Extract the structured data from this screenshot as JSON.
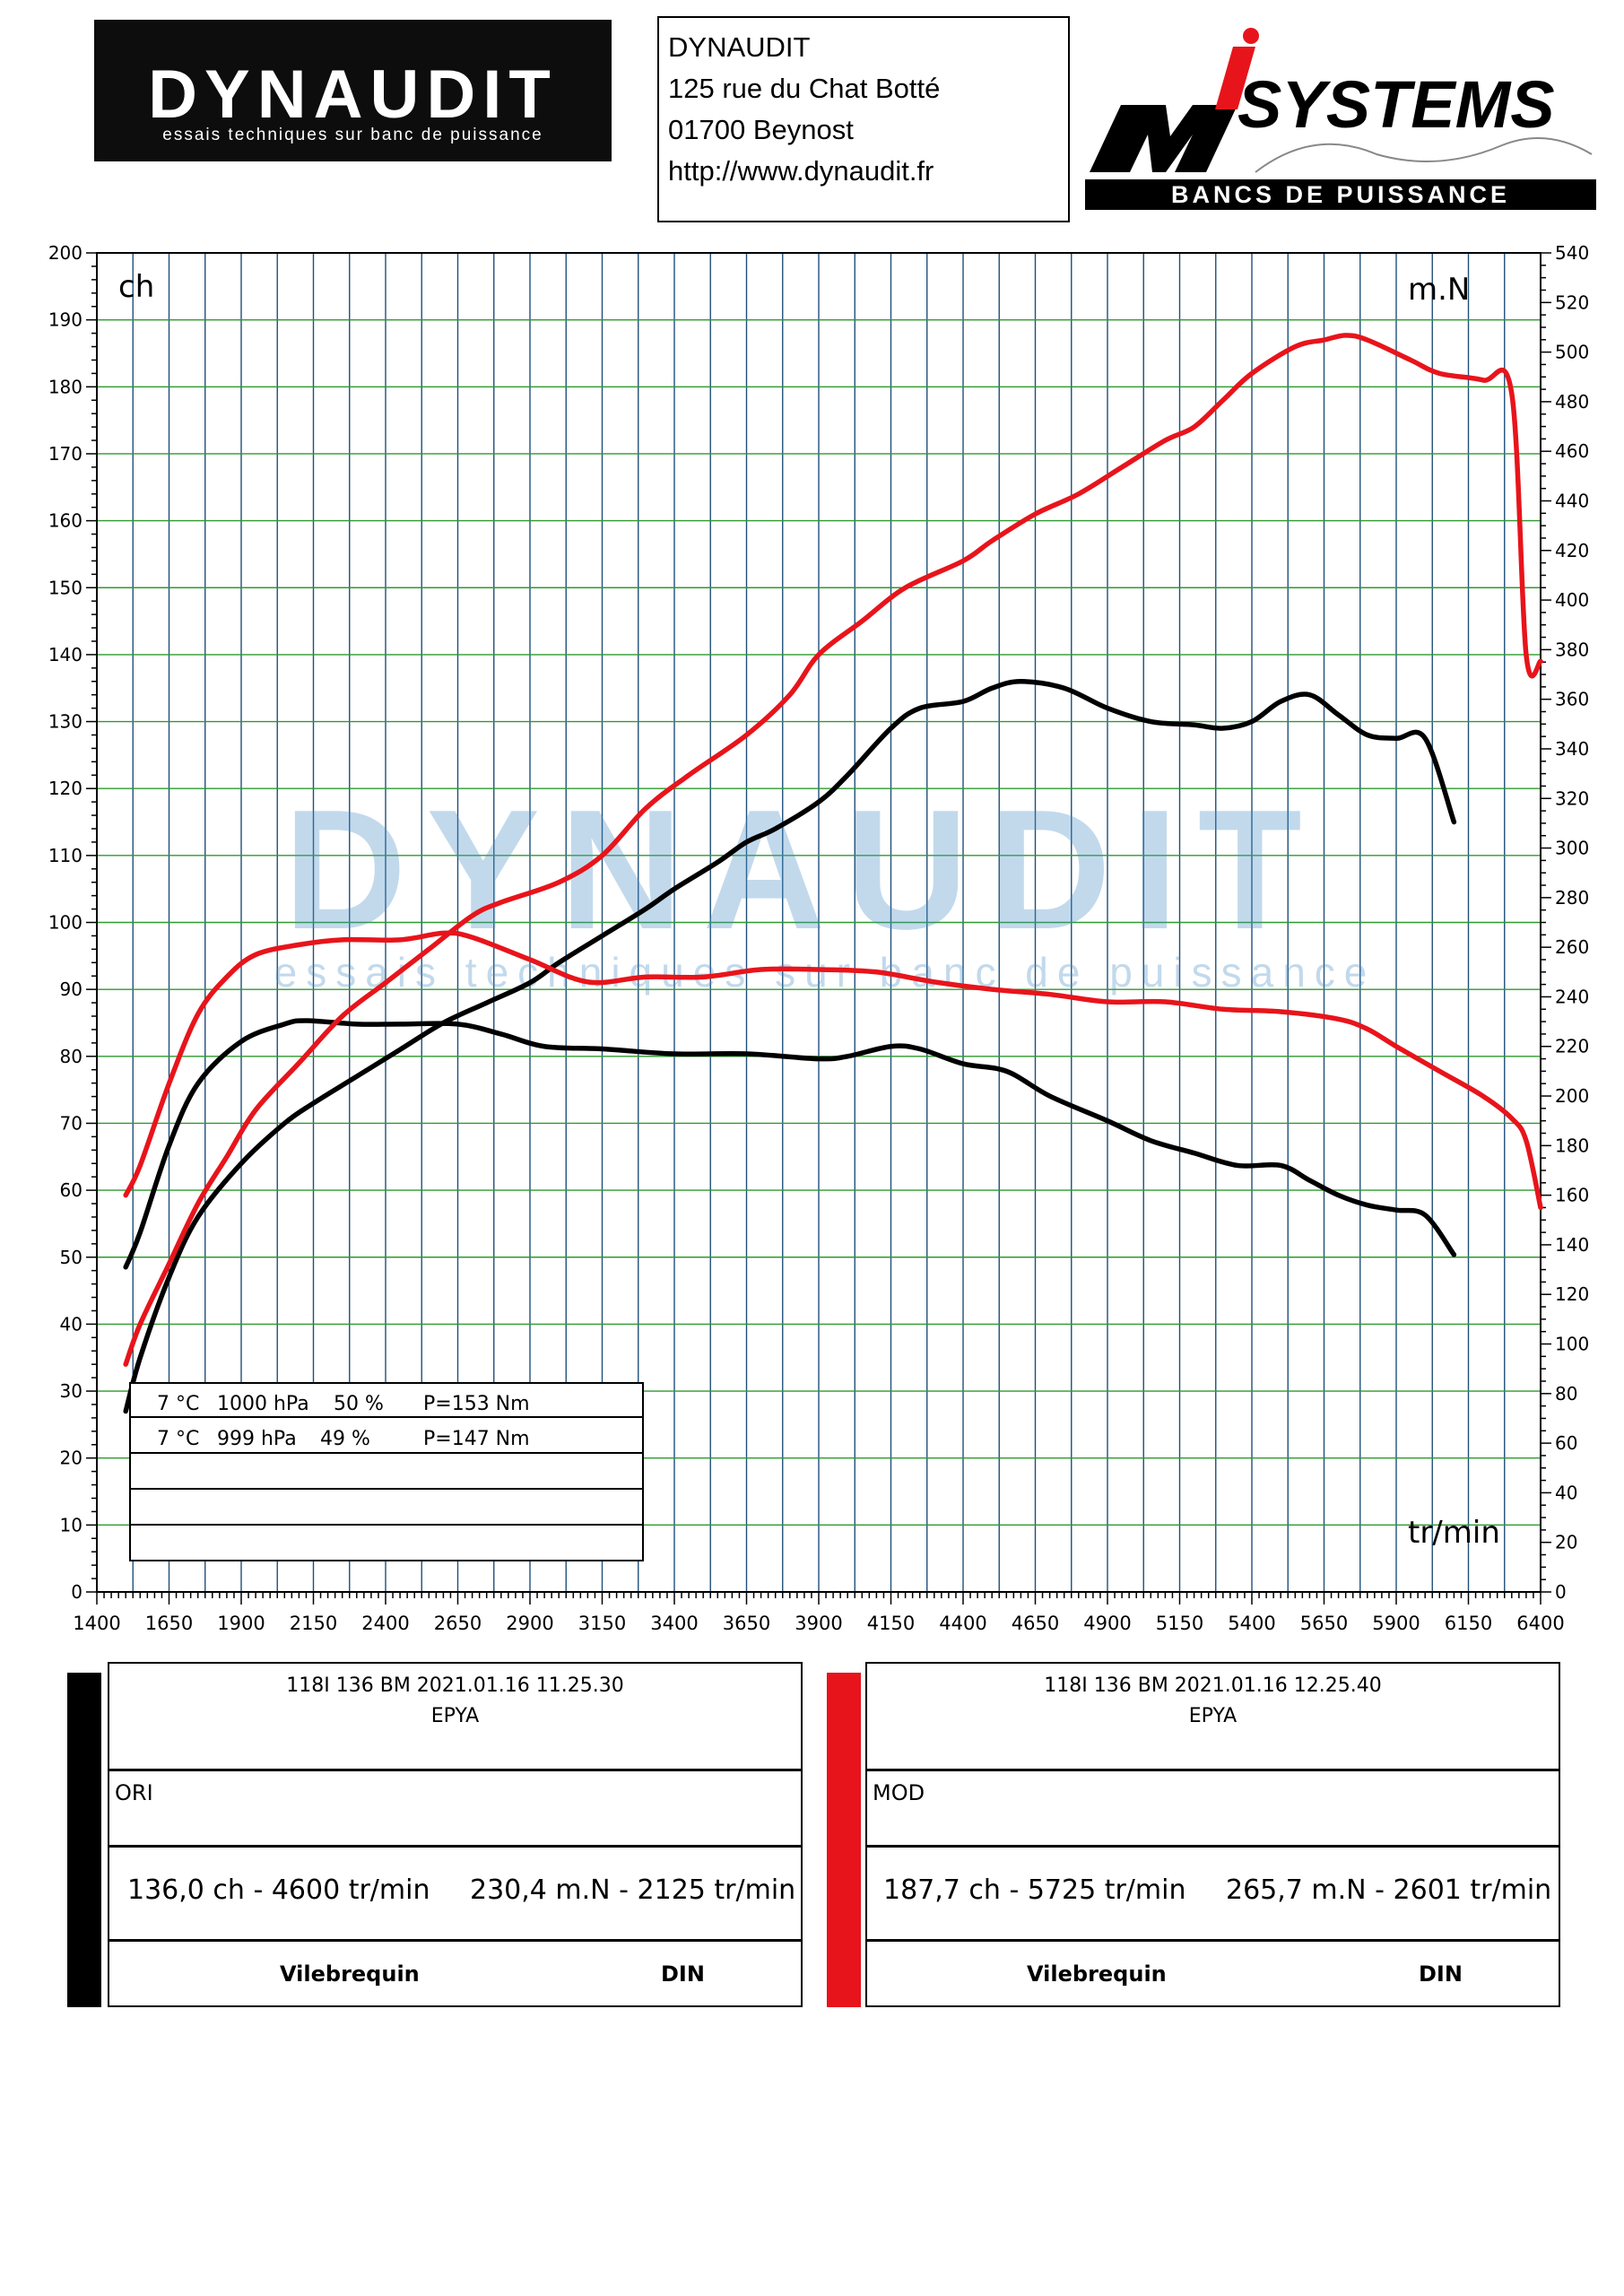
{
  "header": {
    "logo_text": "DYNAUDIT",
    "logo_tagline": "essais techniques sur banc de puissance",
    "address_lines": [
      "DYNAUDIT",
      "125 rue du Chat Botté",
      "01700 Beynost",
      "http://www.dynaudit.fr"
    ],
    "right_logo_text": "SYSTEMS",
    "right_logo_letters": "Mi",
    "right_logo_tagline": "BANCS DE PUISSANCE"
  },
  "watermark": {
    "text": "DYNAUDIT",
    "tagline": "essais techniques sur banc de puissance"
  },
  "conditions": [
    {
      "temp": "7 °C",
      "pressure": "1000 hPa",
      "humidity": "50 %",
      "loss": "P=153 Nm"
    },
    {
      "temp": "7 °C",
      "pressure": "999 hPa",
      "humidity": "49 %",
      "loss": "P=147 Nm"
    }
  ],
  "colors": {
    "ori": "#000000",
    "mod": "#e8141b",
    "grid_vertical": "#1f4f7a",
    "grid_horizontal": "#2e9a2e"
  },
  "chart_data": {
    "type": "line",
    "xlabel": "tr/min",
    "ylabel_left": "ch",
    "ylabel_right": "m.N",
    "xlim": [
      1400,
      6400
    ],
    "ylim_left": [
      0,
      200
    ],
    "ylim_right": [
      0,
      540
    ],
    "x_ticks": [
      1400,
      1650,
      1900,
      2150,
      2400,
      2650,
      2900,
      3150,
      3400,
      3650,
      3900,
      4150,
      4400,
      4650,
      4900,
      5150,
      5400,
      5650,
      5900,
      6150,
      6400
    ],
    "y_left_ticks": [
      0,
      10,
      20,
      30,
      40,
      50,
      60,
      70,
      80,
      90,
      100,
      110,
      120,
      130,
      140,
      150,
      160,
      170,
      180,
      190,
      200
    ],
    "y_right_ticks": [
      0,
      20,
      40,
      60,
      80,
      100,
      120,
      140,
      160,
      180,
      200,
      220,
      240,
      260,
      280,
      300,
      320,
      340,
      360,
      380,
      400,
      420,
      440,
      460,
      480,
      500,
      520,
      540
    ],
    "grid": true,
    "series": [
      {
        "name": "ORI",
        "axis": "left",
        "quantity": "power",
        "color": "#000000",
        "x": [
          1500,
          1550,
          1650,
          1750,
          1900,
          2050,
          2150,
          2300,
          2450,
          2600,
          2750,
          2900,
          3000,
          3150,
          3300,
          3400,
          3550,
          3650,
          3750,
          3900,
          4000,
          4150,
          4250,
          4400,
          4500,
          4600,
          4750,
          4900,
          5050,
          5200,
          5300,
          5400,
          5500,
          5600,
          5700,
          5800,
          5900,
          6000,
          6100
        ],
        "y": [
          27,
          35,
          47,
          56,
          64,
          70,
          73,
          77,
          81,
          85,
          88,
          91,
          94,
          98,
          102,
          105,
          109,
          112,
          114,
          118,
          122,
          129,
          132,
          133,
          135,
          136,
          135,
          132,
          130,
          129.5,
          129,
          130,
          133,
          134,
          131,
          128,
          127.5,
          127.5,
          115
        ]
      },
      {
        "name": "ORI",
        "axis": "right",
        "quantity": "torque",
        "color": "#000000",
        "x": [
          1500,
          1550,
          1650,
          1750,
          1900,
          2050,
          2125,
          2300,
          2450,
          2650,
          2800,
          2950,
          3150,
          3400,
          3650,
          3900,
          4000,
          4150,
          4250,
          4400,
          4550,
          4700,
          4900,
          5050,
          5200,
          5350,
          5500,
          5600,
          5700,
          5800,
          5900,
          6000,
          6100
        ],
        "y": [
          131,
          145,
          180,
          205,
          222,
          229,
          230.4,
          229,
          229,
          229,
          225,
          220,
          219,
          217,
          217,
          215,
          216,
          220,
          219,
          213,
          210,
          200,
          190,
          182,
          177,
          172,
          172,
          166,
          160,
          156,
          154,
          152,
          136
        ]
      },
      {
        "name": "MOD",
        "axis": "left",
        "quantity": "power",
        "color": "#e8141b",
        "x": [
          1500,
          1550,
          1650,
          1750,
          1850,
          1950,
          2100,
          2250,
          2400,
          2550,
          2700,
          2800,
          3000,
          3150,
          3300,
          3450,
          3650,
          3800,
          3900,
          4050,
          4200,
          4400,
          4500,
          4650,
          4800,
          4950,
          5100,
          5200,
          5300,
          5400,
          5550,
          5650,
          5725,
          5800,
          5950,
          6050,
          6200,
          6300,
          6350,
          6400
        ],
        "y": [
          34,
          40,
          49,
          58,
          65,
          72,
          79,
          86,
          91,
          96,
          101,
          103,
          106,
          110,
          117,
          122,
          128,
          134,
          140,
          145,
          150,
          154,
          157,
          161,
          164,
          168,
          172,
          174,
          178,
          182,
          186,
          187,
          187.7,
          187,
          184,
          182,
          181,
          179,
          140,
          139
        ]
      },
      {
        "name": "MOD",
        "axis": "right",
        "quantity": "torque",
        "color": "#e8141b",
        "x": [
          1500,
          1550,
          1650,
          1750,
          1850,
          1950,
          2100,
          2250,
          2450,
          2601,
          2700,
          2900,
          3100,
          3300,
          3500,
          3700,
          3900,
          4100,
          4300,
          4500,
          4700,
          4900,
          5100,
          5300,
          5500,
          5700,
          5800,
          5900,
          6050,
          6200,
          6300,
          6350,
          6400
        ],
        "y": [
          160,
          172,
          205,
          233,
          248,
          257,
          261,
          263,
          263,
          265.7,
          264,
          255,
          246,
          248,
          248,
          251,
          251,
          250,
          246,
          243,
          241,
          238,
          238,
          235,
          234,
          231,
          227,
          220,
          210,
          200,
          191,
          182,
          155
        ]
      }
    ]
  },
  "panels": [
    {
      "title_line1": "118I 136 BM   2021.01.16 11.25.30",
      "title_line2": "EPYA",
      "label": "ORI",
      "power_peak": "136,0 ch - 4600 tr/min",
      "torque_peak": "230,4 m.N - 2125 tr/min",
      "ref": "Vilebrequin",
      "norm": "DIN"
    },
    {
      "title_line1": "118I 136 BM   2021.01.16 12.25.40",
      "title_line2": "EPYA",
      "label": "MOD",
      "power_peak": "187,7 ch - 5725 tr/min",
      "torque_peak": "265,7 m.N - 2601 tr/min",
      "ref": "Vilebrequin",
      "norm": "DIN"
    }
  ]
}
